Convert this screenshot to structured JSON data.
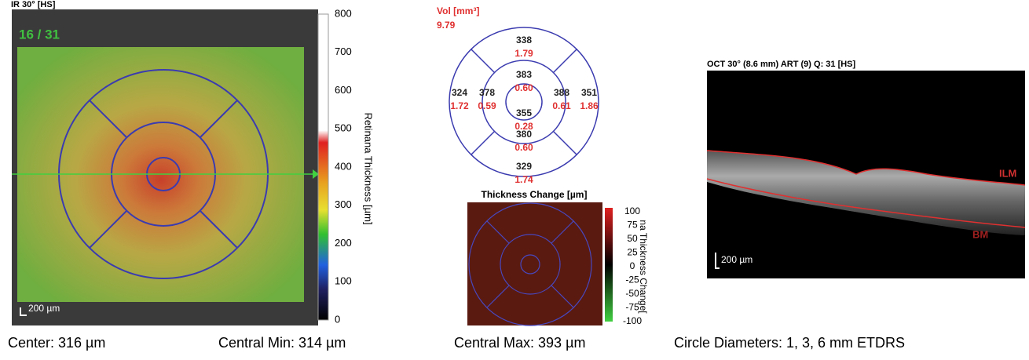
{
  "fundus": {
    "label": "IR 30° [HS]",
    "scan": "16 / 31",
    "scale_bar": "200 µm"
  },
  "thickness_scale": {
    "title": "Retinana Thickness [µm]",
    "ticks": [
      "800",
      "700",
      "600",
      "500",
      "400",
      "300",
      "200",
      "100",
      "0"
    ]
  },
  "etdrs": {
    "volume_label": "Vol [mm³]",
    "total_volume": "9.79",
    "sectors": [
      {
        "thickness": "338",
        "volume": "1.79"
      },
      {
        "thickness": "383",
        "volume": "0.60"
      },
      {
        "thickness": "355",
        "volume": "0.28"
      },
      {
        "thickness": "324",
        "volume": "1.72"
      },
      {
        "thickness": "378",
        "volume": "0.59"
      },
      {
        "thickness": "388",
        "volume": "0.61"
      },
      {
        "thickness": "351",
        "volume": "1.86"
      },
      {
        "thickness": "380",
        "volume": "0.60"
      },
      {
        "thickness": "329",
        "volume": "1.74"
      }
    ]
  },
  "change_map": {
    "title": "Thickness Change [µm]",
    "side_label": "na Thickness Change[",
    "ticks": [
      "100",
      "75",
      "50",
      "25",
      "0",
      "-25",
      "-50",
      "-75",
      "-100"
    ]
  },
  "oct": {
    "label": "OCT 30° (8.6 mm) ART (9) Q: 31 [HS]",
    "ilm": "ILM",
    "bm": "BM",
    "scale_bar": "200 µm"
  },
  "footer": {
    "center": "Center: 316 µm",
    "central_min": "Central Min: 314 µm",
    "central_max": "Central Max: 393 µm",
    "circles": "Circle Diameters:  1, 3, 6 mm ETDRS"
  }
}
